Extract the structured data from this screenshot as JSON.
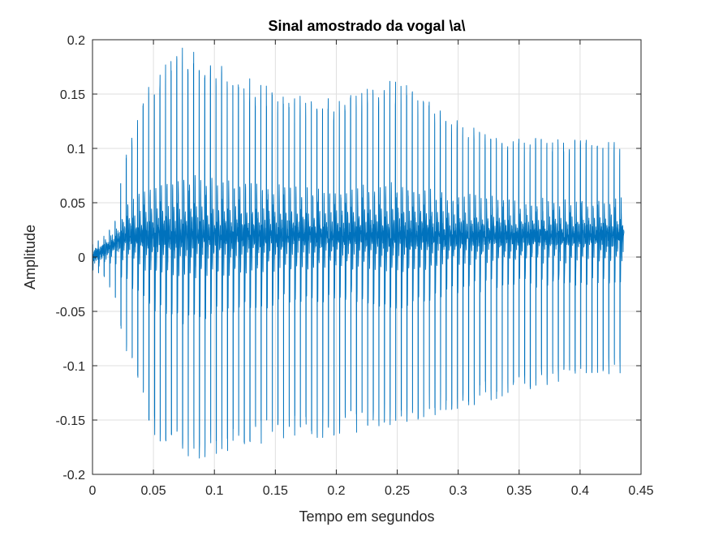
{
  "chart_data": {
    "type": "line",
    "title": "Sinal amostrado da vogal \\a\\",
    "xlabel": "Tempo em segundos",
    "ylabel": "Amplitude",
    "xlim": [
      0,
      0.45
    ],
    "ylim": [
      -0.2,
      0.2
    ],
    "xticks": [
      0,
      0.05,
      0.1,
      0.15,
      0.2,
      0.25,
      0.3,
      0.35,
      0.4,
      0.45
    ],
    "xtick_labels": [
      "0",
      "0.05",
      "0.1",
      "0.15",
      "0.2",
      "0.25",
      "0.3",
      "0.35",
      "0.4",
      "0.45"
    ],
    "yticks": [
      -0.2,
      -0.15,
      -0.1,
      -0.05,
      0,
      0.05,
      0.1,
      0.15,
      0.2
    ],
    "ytick_labels": [
      "-0.2",
      "-0.15",
      "-0.1",
      "-0.05",
      "0",
      "0.05",
      "0.1",
      "0.15",
      "0.2"
    ],
    "grid": true,
    "series_color": "#0072BD",
    "signal": {
      "duration": 0.436,
      "pitch_period": 0.0046,
      "envelope_t": [
        0,
        0.01,
        0.02,
        0.025,
        0.035,
        0.05,
        0.075,
        0.1,
        0.15,
        0.2,
        0.25,
        0.3,
        0.35,
        0.4,
        0.436
      ],
      "envelope_max": [
        0.012,
        0.02,
        0.038,
        0.09,
        0.12,
        0.17,
        0.195,
        0.18,
        0.155,
        0.145,
        0.165,
        0.125,
        0.11,
        0.11,
        0.109
      ],
      "envelope_min": [
        -0.012,
        -0.02,
        -0.04,
        -0.08,
        -0.115,
        -0.165,
        -0.19,
        -0.185,
        -0.17,
        -0.165,
        -0.155,
        -0.14,
        -0.125,
        -0.11,
        -0.107
      ]
    }
  }
}
